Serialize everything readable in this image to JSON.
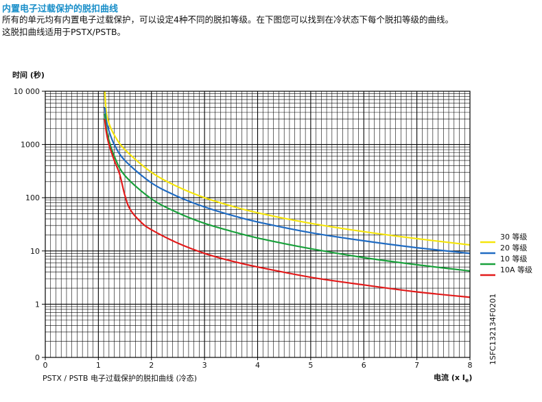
{
  "header": {
    "title": "内置电子过载保护的脱扣曲线",
    "intro_line1": "所有的单元均有内置电子过载保护，可以设定4种不同的脱扣等级。在下图您可以找到在冷状态下每个脱扣等级的曲线。",
    "intro_line2": "这脱扣曲线适用于PSTX/PSTB。"
  },
  "chart_data": {
    "type": "line",
    "title": "",
    "ylabel": "时间 (秒)",
    "xlabel": "电流 (x Ie)",
    "xlabel_main": "电流 (x I",
    "xlabel_sub": "e",
    "xlabel_end": ")",
    "caption": "PSTX / PSTB 电子过载保护的脱扣曲线 (冷态)",
    "figure_code": "1SFC132134F0201",
    "y_scale": "log",
    "xlim": [
      0,
      8
    ],
    "ylim": [
      0.1,
      10000
    ],
    "x_ticks": [
      "0",
      "1",
      "2",
      "3",
      "4",
      "5",
      "6",
      "7",
      "8"
    ],
    "y_ticks": [
      {
        "value": 10000,
        "label": "10 000"
      },
      {
        "value": 1000,
        "label": "1000"
      },
      {
        "value": 100,
        "label": "100"
      },
      {
        "value": 10,
        "label": "10"
      },
      {
        "value": 1,
        "label": "1"
      },
      {
        "value": 0.1,
        "label": "0"
      }
    ],
    "grid": true,
    "legend_position": "right",
    "series": [
      {
        "name": "30 等级",
        "color": "#f5e50a",
        "x": [
          1.12,
          1.15,
          1.2,
          1.3,
          1.5,
          2.0,
          2.5,
          3.0,
          3.5,
          4.0,
          5.0,
          6.0,
          7.0,
          8.0
        ],
        "y": [
          10000,
          4000,
          2500,
          1500,
          800,
          300,
          160,
          100,
          70,
          52,
          33,
          23,
          17,
          13
        ]
      },
      {
        "name": "20 等级",
        "color": "#1f6bc2",
        "x": [
          1.12,
          1.15,
          1.2,
          1.3,
          1.5,
          2.0,
          2.5,
          3.0,
          3.5,
          4.0,
          5.0,
          6.0,
          7.0,
          8.0
        ],
        "y": [
          5000,
          2800,
          1800,
          1000,
          500,
          190,
          105,
          67,
          47,
          35,
          22,
          15.5,
          11.5,
          9
        ]
      },
      {
        "name": "10 等级",
        "color": "#18a03a",
        "x": [
          1.12,
          1.15,
          1.2,
          1.3,
          1.5,
          2.0,
          2.5,
          3.0,
          3.5,
          4.0,
          5.0,
          6.0,
          7.0,
          8.0
        ],
        "y": [
          3800,
          2000,
          1200,
          600,
          260,
          95,
          52,
          33,
          23.5,
          17.5,
          11,
          7.5,
          5.5,
          4.2
        ]
      },
      {
        "name": "10A 等级",
        "color": "#e21a1a",
        "x": [
          1.12,
          1.15,
          1.2,
          1.3,
          1.4,
          1.5,
          1.6,
          1.8,
          2.0,
          2.5,
          3.0,
          3.5,
          4.0,
          5.0,
          6.0,
          7.0,
          8.0
        ],
        "y": [
          3000,
          1700,
          1000,
          500,
          280,
          110,
          60,
          35,
          25,
          14,
          9,
          6.5,
          5,
          3.2,
          2.3,
          1.7,
          1.35
        ]
      }
    ]
  }
}
